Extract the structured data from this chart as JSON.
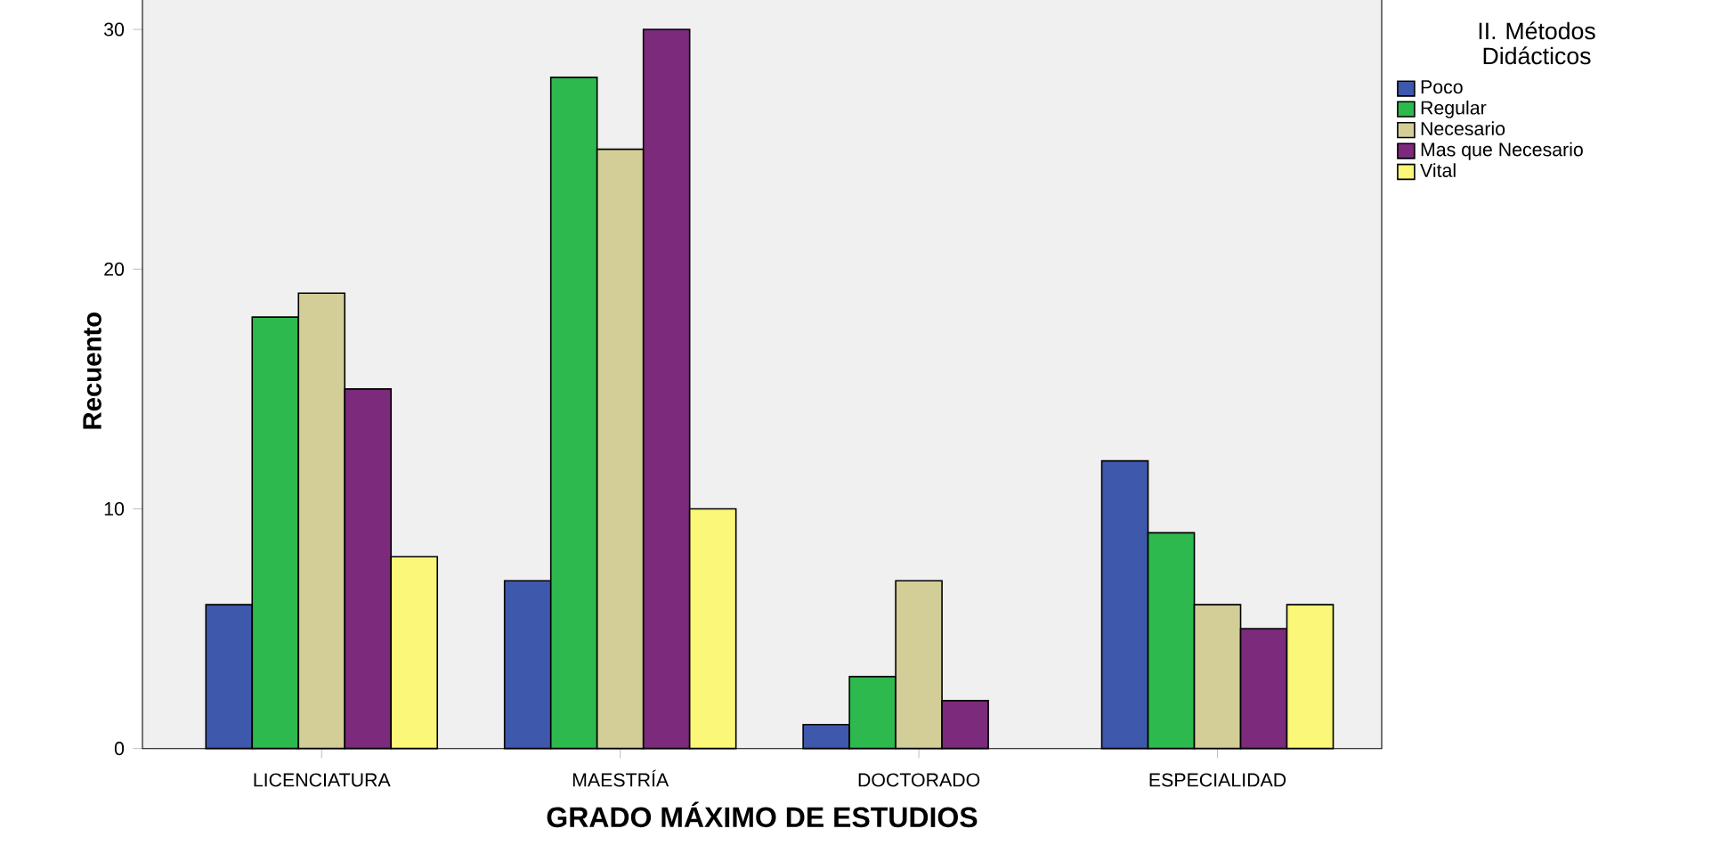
{
  "chart_data": {
    "type": "bar",
    "xlabel": "GRADO MÁXIMO DE ESTUDIOS",
    "ylabel": "Recuento",
    "legend_title": "II. Métodos Didácticos",
    "categories": [
      "LICENCIATURA",
      "MAESTRÍA",
      "DOCTORADO",
      "ESPECIALIDAD"
    ],
    "series": [
      {
        "name": "Poco",
        "color": "#3e58ac",
        "values": [
          6,
          7,
          1,
          12
        ]
      },
      {
        "name": "Regular",
        "color": "#2db94d",
        "values": [
          18,
          28,
          3,
          9
        ]
      },
      {
        "name": "Necesario",
        "color": "#d3ce97",
        "values": [
          19,
          25,
          7,
          6
        ]
      },
      {
        "name": "Mas que Necesario",
        "color": "#7b2a7c",
        "values": [
          15,
          30,
          2,
          5
        ]
      },
      {
        "name": "Vital",
        "color": "#fbf779",
        "values": [
          8,
          10,
          null,
          6
        ]
      }
    ],
    "ylim": [
      0,
      31.5
    ],
    "yticks": [
      0,
      10,
      20,
      30
    ],
    "grid": false,
    "legend": "top right"
  }
}
